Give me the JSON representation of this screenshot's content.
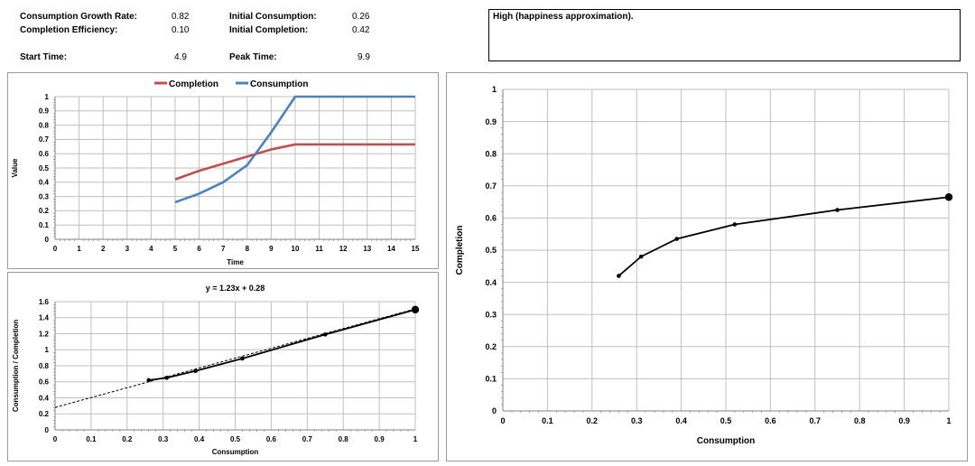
{
  "params": {
    "growth_rate_label": "Consumption Growth Rate:",
    "growth_rate_value": "0.82",
    "efficiency_label": "Completion Efficiency:",
    "efficiency_value": "0.10",
    "init_consumption_label": "Initial Consumption:",
    "init_consumption_value": "0.26",
    "init_completion_label": "Initial Completion:",
    "init_completion_value": "0.42",
    "start_time_label": "Start Time:",
    "start_time_value": "4.9",
    "peak_time_label": "Peak Time:",
    "peak_time_value": "9.9"
  },
  "note": "High (happiness approximation).",
  "chart_data": [
    {
      "type": "line",
      "title": "",
      "xlabel": "Time",
      "ylabel": "Value",
      "xlim": [
        0,
        15
      ],
      "ylim": [
        0,
        1
      ],
      "xticks": [
        0,
        1,
        2,
        3,
        4,
        5,
        6,
        7,
        8,
        9,
        10,
        11,
        12,
        13,
        14,
        15
      ],
      "yticks": [
        0,
        0.1,
        0.2,
        0.3,
        0.4,
        0.5,
        0.6,
        0.7,
        0.8,
        0.9,
        1
      ],
      "legend": "top",
      "series": [
        {
          "name": "Completion",
          "color": "#c0504d",
          "x": [
            5,
            6,
            7,
            8,
            9,
            10,
            11,
            12,
            13,
            14,
            15
          ],
          "y": [
            0.42,
            0.48,
            0.53,
            0.58,
            0.63,
            0.665,
            0.665,
            0.665,
            0.665,
            0.665,
            0.665
          ]
        },
        {
          "name": "Consumption",
          "color": "#4f81bd",
          "x": [
            5,
            6,
            7,
            8,
            9,
            10,
            11,
            12,
            13,
            14,
            15
          ],
          "y": [
            0.26,
            0.32,
            0.4,
            0.52,
            0.75,
            1,
            1,
            1,
            1,
            1,
            1
          ]
        }
      ]
    },
    {
      "type": "scatter",
      "title": "y = 1.23x + 0.28",
      "xlabel": "Consumption",
      "ylabel": "Consumption / Completion",
      "xlim": [
        0,
        1
      ],
      "ylim": [
        0,
        1.6
      ],
      "xticks": [
        0,
        0.1,
        0.2,
        0.3,
        0.4,
        0.5,
        0.6,
        0.7,
        0.8,
        0.9,
        1
      ],
      "yticks": [
        0,
        0.2,
        0.4,
        0.6,
        0.8,
        1,
        1.2,
        1.4,
        1.6
      ],
      "trendline": {
        "slope": 1.23,
        "intercept": 0.28
      },
      "series": [
        {
          "name": "Consumption / Completion",
          "x": [
            0.26,
            0.31,
            0.39,
            0.52,
            0.75,
            1
          ],
          "y": [
            0.62,
            0.65,
            0.735,
            0.89,
            1.19,
            1.5
          ]
        }
      ]
    },
    {
      "type": "scatter",
      "title": "",
      "xlabel": "Consumption",
      "ylabel": "Completion",
      "xlim": [
        0,
        1
      ],
      "ylim": [
        0,
        1
      ],
      "xticks": [
        0,
        0.1,
        0.2,
        0.3,
        0.4,
        0.5,
        0.6,
        0.7,
        0.8,
        0.9,
        1
      ],
      "yticks": [
        0,
        0.1,
        0.2,
        0.3,
        0.4,
        0.5,
        0.6,
        0.7,
        0.8,
        0.9,
        1
      ],
      "series": [
        {
          "name": "Completion",
          "x": [
            0.26,
            0.31,
            0.39,
            0.52,
            0.75,
            1
          ],
          "y": [
            0.42,
            0.48,
            0.535,
            0.58,
            0.625,
            0.665
          ]
        }
      ]
    }
  ]
}
